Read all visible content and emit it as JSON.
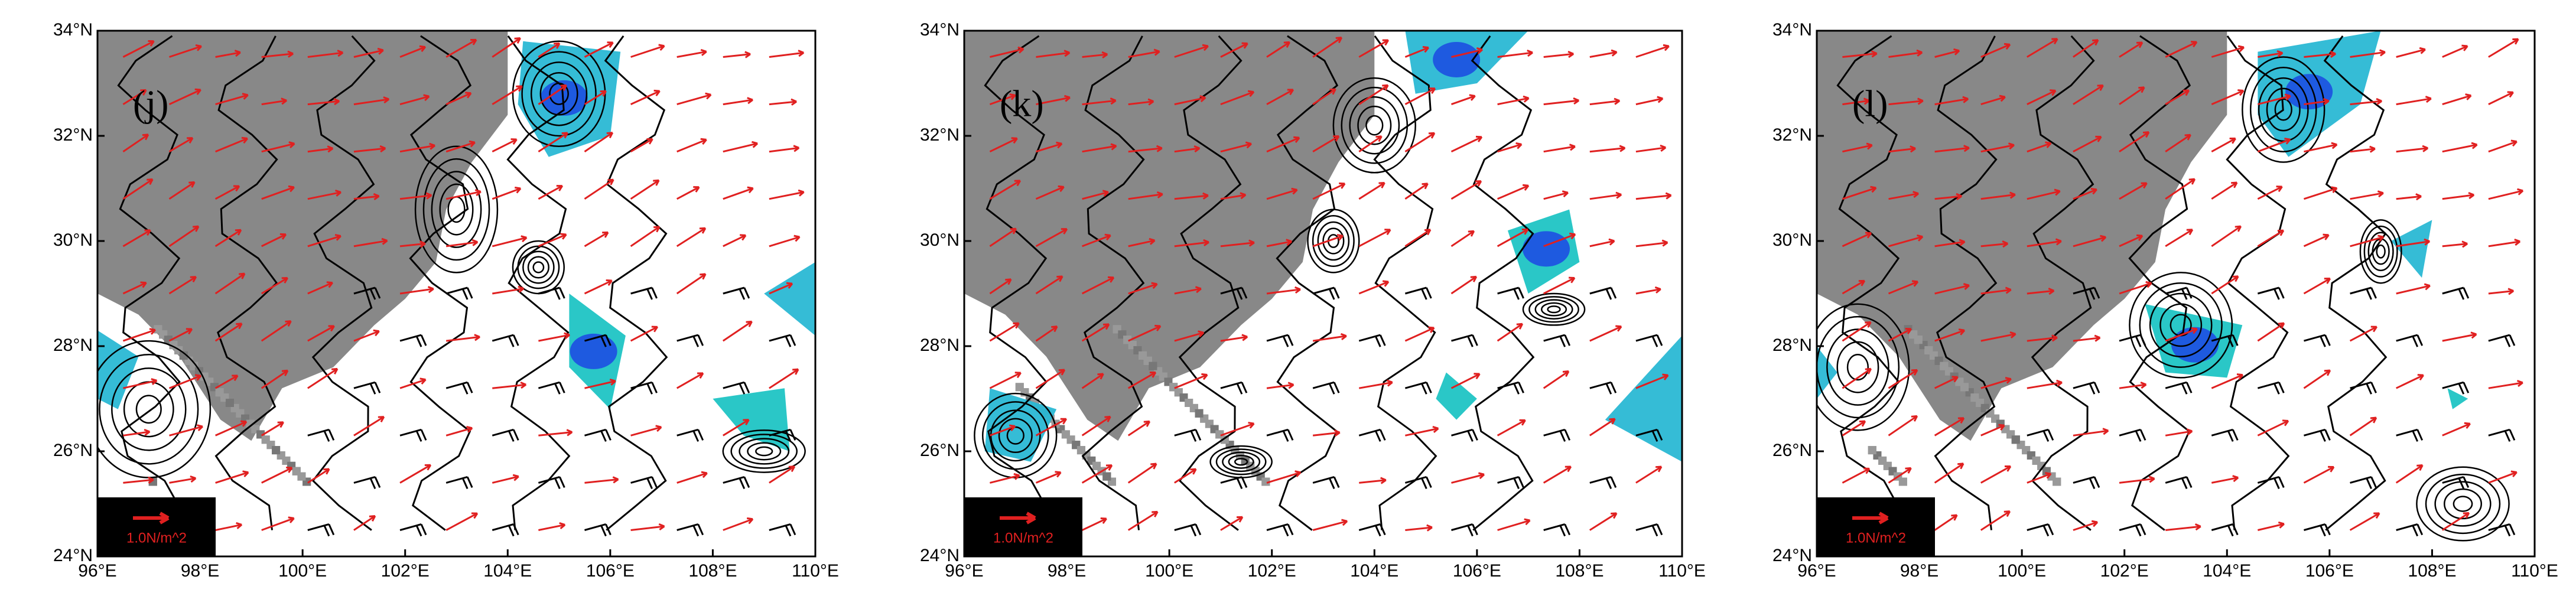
{
  "lon_range": [
    96,
    110
  ],
  "lat_range": [
    24,
    34
  ],
  "lon_ticks": [
    {
      "value": 96,
      "label": "96°E"
    },
    {
      "value": 98,
      "label": "98°E"
    },
    {
      "value": 100,
      "label": "100°E"
    },
    {
      "value": 102,
      "label": "102°E"
    },
    {
      "value": 104,
      "label": "104°E"
    },
    {
      "value": 106,
      "label": "106°E"
    },
    {
      "value": 108,
      "label": "108°E"
    },
    {
      "value": 110,
      "label": "110°E"
    }
  ],
  "lat_ticks": [
    {
      "value": 24,
      "label": "24°N"
    },
    {
      "value": 26,
      "label": "26°N"
    },
    {
      "value": 28,
      "label": "28°N"
    },
    {
      "value": 30,
      "label": "30°N"
    },
    {
      "value": 32,
      "label": "32°N"
    },
    {
      "value": 34,
      "label": "34°N"
    }
  ],
  "panels": [
    {
      "label": "(j)",
      "reference": "1.0N/m^2"
    },
    {
      "label": "(k)",
      "reference": "1.0N/m^2"
    },
    {
      "label": "(l)",
      "reference": "1.0N/m^2"
    }
  ]
}
